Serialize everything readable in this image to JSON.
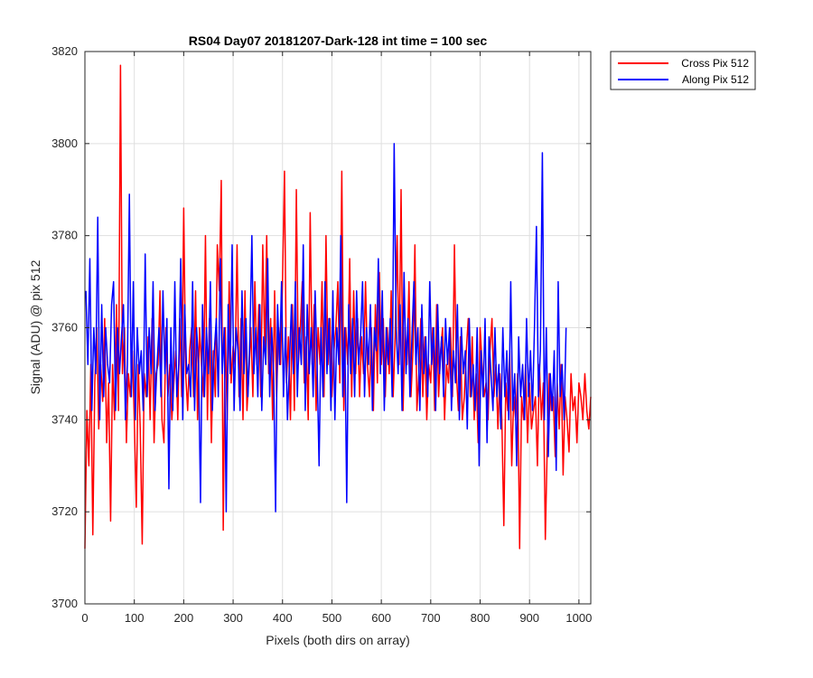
{
  "chart_data": {
    "type": "line",
    "title": "RS04 Day07 20181207-Dark-128 int time = 100 sec",
    "xlabel": "Pixels (both dirs on array)",
    "ylabel": "Signal (ADU) @ pix 512",
    "xlim": [
      0,
      1024
    ],
    "ylim": [
      3700,
      3820
    ],
    "xticks": [
      0,
      100,
      200,
      300,
      400,
      500,
      600,
      700,
      800,
      900,
      1000
    ],
    "yticks": [
      3700,
      3720,
      3740,
      3760,
      3780,
      3800,
      3820
    ],
    "grid": true,
    "legend_position": "outside-top-right",
    "series": [
      {
        "name": "Cross Pix 512",
        "color": "#ff0000",
        "x_start": 0,
        "x_step": 4,
        "values": [
          3712,
          3742,
          3730,
          3752,
          3715,
          3748,
          3760,
          3738,
          3752,
          3744,
          3762,
          3735,
          3748,
          3718,
          3752,
          3740,
          3765,
          3742,
          3817,
          3750,
          3760,
          3735,
          3750,
          3745,
          3755,
          3740,
          3721,
          3752,
          3738,
          3713,
          3750,
          3745,
          3758,
          3740,
          3762,
          3735,
          3750,
          3752,
          3768,
          3740,
          3735,
          3760,
          3745,
          3752,
          3740,
          3748,
          3755,
          3740,
          3762,
          3745,
          3786,
          3750,
          3742,
          3755,
          3760,
          3745,
          3768,
          3740,
          3760,
          3752,
          3745,
          3780,
          3740,
          3762,
          3735,
          3755,
          3745,
          3778,
          3768,
          3792,
          3716,
          3760,
          3740,
          3770,
          3748,
          3756,
          3752,
          3778,
          3745,
          3762,
          3740,
          3768,
          3742,
          3750,
          3760,
          3745,
          3770,
          3752,
          3765,
          3745,
          3778,
          3755,
          3780,
          3750,
          3762,
          3740,
          3768,
          3745,
          3760,
          3752,
          3770,
          3794,
          3748,
          3758,
          3740,
          3765,
          3742,
          3790,
          3752,
          3760,
          3770,
          3748,
          3758,
          3740,
          3785,
          3752,
          3765,
          3742,
          3760,
          3752,
          3770,
          3745,
          3780,
          3752,
          3762,
          3745,
          3755,
          3760,
          3770,
          3748,
          3794,
          3742,
          3760,
          3752,
          3775,
          3745,
          3768,
          3750,
          3762,
          3745,
          3758,
          3750,
          3770,
          3752,
          3745,
          3760,
          3742,
          3765,
          3748,
          3772,
          3752,
          3762,
          3745,
          3760,
          3750,
          3768,
          3745,
          3758,
          3780,
          3752,
          3790,
          3742,
          3760,
          3752,
          3770,
          3745,
          3755,
          3778,
          3742,
          3750,
          3762,
          3745,
          3758,
          3740,
          3752,
          3748,
          3760,
          3742,
          3765,
          3745,
          3755,
          3760,
          3740,
          3752,
          3748,
          3760,
          3745,
          3778,
          3750,
          3742,
          3758,
          3740,
          3745,
          3755,
          3762,
          3745,
          3758,
          3740,
          3750,
          3735,
          3760,
          3752,
          3745,
          3748,
          3740,
          3755,
          3762,
          3745,
          3752,
          3738,
          3750,
          3740,
          3717,
          3748,
          3742,
          3755,
          3730,
          3745,
          3740,
          3750,
          3712,
          3745,
          3740,
          3752,
          3735,
          3748,
          3738,
          3742,
          3745,
          3730,
          3752,
          3740,
          3748,
          3714,
          3735,
          3750,
          3742,
          3745,
          3732,
          3748,
          3738,
          3752,
          3728,
          3745,
          3740,
          3733,
          3750,
          3742,
          3745,
          3735,
          3748,
          3745,
          3740,
          3750,
          3742,
          3738,
          3745
        ]
      },
      {
        "name": "Along Pix 512",
        "color": "#0000ff",
        "x_start": 2,
        "x_step": 4,
        "values": [
          3768,
          3752,
          3775,
          3742,
          3760,
          3750,
          3784,
          3740,
          3765,
          3745,
          3760,
          3752,
          3748,
          3765,
          3770,
          3742,
          3760,
          3750,
          3758,
          3765,
          3740,
          3752,
          3789,
          3745,
          3770,
          3740,
          3760,
          3750,
          3755,
          3742,
          3776,
          3745,
          3760,
          3750,
          3770,
          3742,
          3752,
          3760,
          3745,
          3768,
          3750,
          3762,
          3725,
          3760,
          3742,
          3770,
          3745,
          3752,
          3775,
          3740,
          3765,
          3750,
          3752,
          3745,
          3770,
          3742,
          3760,
          3752,
          3722,
          3765,
          3745,
          3760,
          3750,
          3770,
          3742,
          3755,
          3762,
          3745,
          3775,
          3750,
          3760,
          3720,
          3765,
          3750,
          3778,
          3742,
          3760,
          3755,
          3742,
          3768,
          3750,
          3762,
          3745,
          3758,
          3780,
          3750,
          3760,
          3745,
          3765,
          3742,
          3758,
          3752,
          3775,
          3745,
          3760,
          3750,
          3720,
          3765,
          3752,
          3770,
          3745,
          3760,
          3740,
          3752,
          3765,
          3750,
          3770,
          3745,
          3760,
          3752,
          3778,
          3742,
          3765,
          3750,
          3760,
          3745,
          3768,
          3752,
          3730,
          3760,
          3745,
          3770,
          3750,
          3762,
          3742,
          3768,
          3740,
          3760,
          3752,
          3780,
          3745,
          3760,
          3722,
          3765,
          3750,
          3762,
          3745,
          3768,
          3752,
          3758,
          3770,
          3745,
          3760,
          3752,
          3765,
          3742,
          3760,
          3755,
          3775,
          3750,
          3768,
          3742,
          3760,
          3752,
          3762,
          3745,
          3800,
          3760,
          3750,
          3765,
          3742,
          3772,
          3750,
          3762,
          3745,
          3758,
          3770,
          3752,
          3760,
          3742,
          3765,
          3750,
          3758,
          3745,
          3770,
          3752,
          3760,
          3742,
          3765,
          3750,
          3758,
          3745,
          3762,
          3752,
          3760,
          3742,
          3755,
          3748,
          3765,
          3740,
          3760,
          3750,
          3755,
          3738,
          3762,
          3745,
          3752,
          3742,
          3760,
          3730,
          3755,
          3745,
          3762,
          3735,
          3758,
          3750,
          3742,
          3760,
          3745,
          3752,
          3738,
          3760,
          3745,
          3755,
          3740,
          3770,
          3742,
          3750,
          3730,
          3758,
          3745,
          3752,
          3740,
          3762,
          3745,
          3755,
          3742,
          3760,
          3782,
          3745,
          3755,
          3798,
          3740,
          3760,
          3732,
          3750,
          3742,
          3755,
          3729,
          3770,
          3745,
          3752,
          3740,
          3760
        ]
      }
    ]
  }
}
